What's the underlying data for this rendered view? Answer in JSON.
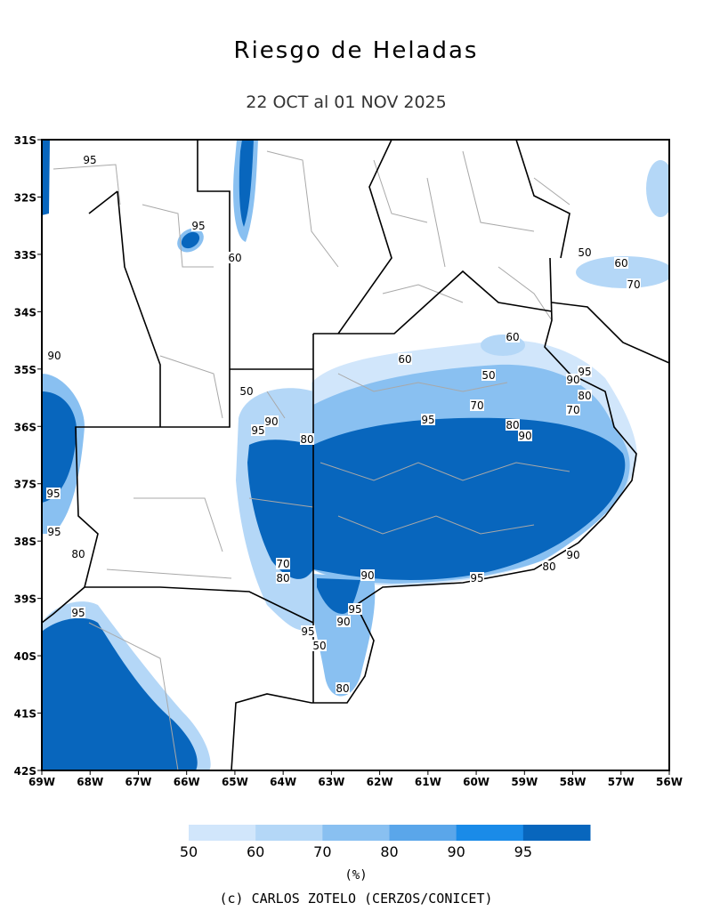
{
  "header": {
    "title": "Riesgo de Heladas",
    "subtitle": "22 OCT al 01 NOV 2025"
  },
  "map": {
    "lon_range": [
      -69,
      -56
    ],
    "lat_range": [
      -31,
      -42
    ],
    "lon_ticks": [
      {
        "value": -69,
        "label": "69W"
      },
      {
        "value": -68,
        "label": "68W"
      },
      {
        "value": -67,
        "label": "67W"
      },
      {
        "value": -66,
        "label": "66W"
      },
      {
        "value": -65,
        "label": "65W"
      },
      {
        "value": -64,
        "label": "64W"
      },
      {
        "value": -63,
        "label": "63W"
      },
      {
        "value": -62,
        "label": "62W"
      },
      {
        "value": -61,
        "label": "61W"
      },
      {
        "value": -60,
        "label": "60W"
      },
      {
        "value": -59,
        "label": "59W"
      },
      {
        "value": -58,
        "label": "58W"
      },
      {
        "value": -57,
        "label": "57W"
      },
      {
        "value": -56,
        "label": "56W"
      }
    ],
    "lat_ticks": [
      {
        "value": -31,
        "label": "31S"
      },
      {
        "value": -32,
        "label": "32S"
      },
      {
        "value": -33,
        "label": "33S"
      },
      {
        "value": -34,
        "label": "34S"
      },
      {
        "value": -35,
        "label": "35S"
      },
      {
        "value": -36,
        "label": "36S"
      },
      {
        "value": -37,
        "label": "37S"
      },
      {
        "value": -38,
        "label": "38S"
      },
      {
        "value": -39,
        "label": "39S"
      },
      {
        "value": -40,
        "label": "40S"
      },
      {
        "value": -41,
        "label": "41S"
      },
      {
        "value": -42,
        "label": "42S"
      }
    ],
    "contour_labels": [
      "95",
      "95",
      "60",
      "50",
      "60",
      "70",
      "60",
      "60",
      "50",
      "70",
      "95",
      "80",
      "90",
      "80",
      "90",
      "95",
      "70",
      "80",
      "95",
      "90",
      "90",
      "95",
      "90",
      "80",
      "95",
      "95",
      "80",
      "95",
      "70",
      "80",
      "80",
      "50",
      "90",
      "95",
      "95",
      "90",
      "50"
    ]
  },
  "colorbar": {
    "levels": [
      50,
      60,
      70,
      80,
      90,
      95
    ],
    "colors": [
      "#d1e6fb",
      "#b4d7f7",
      "#89c0f1",
      "#5aa6ea",
      "#1a8be8",
      "#0866bd"
    ],
    "unit": "(%)"
  },
  "footer": {
    "credit": "(c) CARLOS ZOTELO (CERZOS/CONICET)"
  }
}
